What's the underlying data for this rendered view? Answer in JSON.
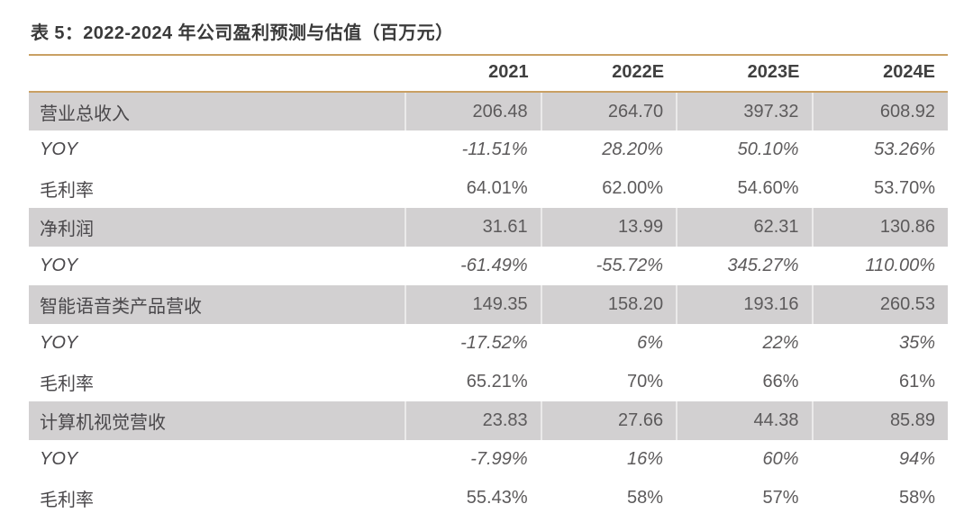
{
  "page": {
    "background": "#FFFFFF"
  },
  "colors": {
    "accent_line": "#C9A063",
    "highlight_row_bg": "#D2D0D1",
    "title_text": "#3A3A3A",
    "header_text": "#404040",
    "label_text": "#4A484B",
    "value_text": "#5C5A5B"
  },
  "table_caption": "表 5：2022-2024 年公司盈利预测与估值（百万元）",
  "table": {
    "columns": [
      "",
      "2021",
      "2022E",
      "2023E",
      "2024E"
    ],
    "rows": [
      {
        "label": "营业总收入",
        "values": [
          "206.48",
          "264.70",
          "397.32",
          "608.92"
        ],
        "style": "highlight"
      },
      {
        "label": "YOY",
        "values": [
          "-11.51%",
          "28.20%",
          "50.10%",
          "53.26%"
        ],
        "style": "yoy"
      },
      {
        "label": "毛利率",
        "values": [
          "64.01%",
          "62.00%",
          "54.60%",
          "53.70%"
        ],
        "style": "normal"
      },
      {
        "label": "净利润",
        "values": [
          "31.61",
          "13.99",
          "62.31",
          "130.86"
        ],
        "style": "highlight"
      },
      {
        "label": "YOY",
        "values": [
          "-61.49%",
          "-55.72%",
          "345.27%",
          "110.00%"
        ],
        "style": "yoy"
      },
      {
        "label": "智能语音类产品营收",
        "values": [
          "149.35",
          "158.20",
          "193.16",
          "260.53"
        ],
        "style": "highlight"
      },
      {
        "label": "YOY",
        "values": [
          "-17.52%",
          "6%",
          "22%",
          "35%"
        ],
        "style": "yoy"
      },
      {
        "label": "毛利率",
        "values": [
          "65.21%",
          "70%",
          "66%",
          "61%"
        ],
        "style": "normal"
      },
      {
        "label": "计算机视觉营收",
        "values": [
          "23.83",
          "27.66",
          "44.38",
          "85.89"
        ],
        "style": "highlight"
      },
      {
        "label": "YOY",
        "values": [
          "-7.99%",
          "16%",
          "60%",
          "94%"
        ],
        "style": "yoy"
      },
      {
        "label": "毛利率",
        "values": [
          "55.43%",
          "58%",
          "57%",
          "58%"
        ],
        "style": "normal"
      }
    ]
  }
}
